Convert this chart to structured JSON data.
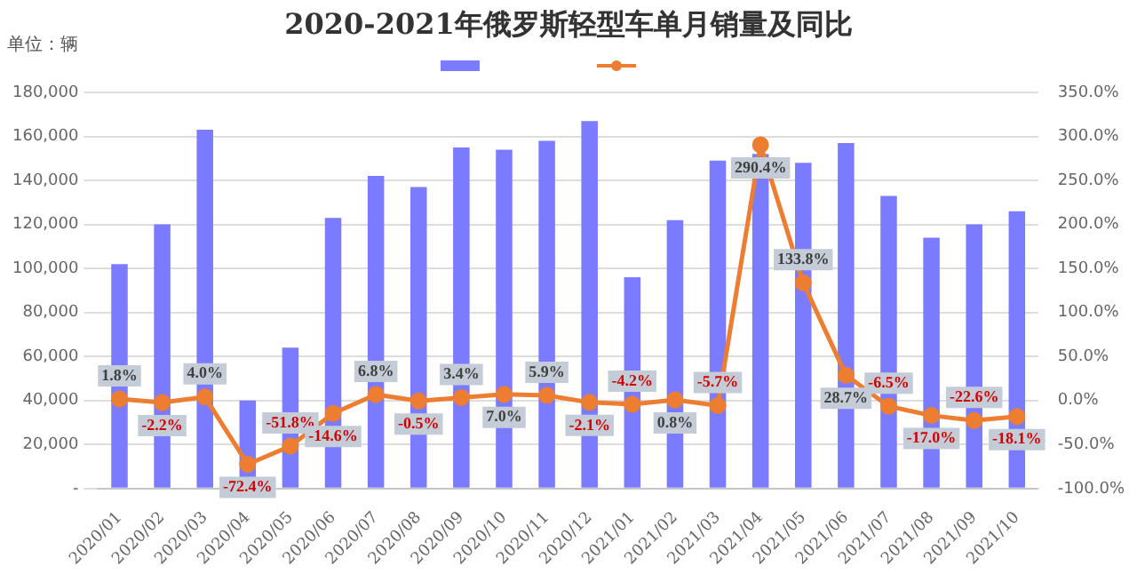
{
  "chart_data": {
    "type": "bar",
    "title": "2020-2021年俄罗斯轻型车单月销量及同比",
    "annotations": [
      "单位：辆"
    ],
    "categories": [
      "2020/01",
      "2020/02",
      "2020/03",
      "2020/04",
      "2020/05",
      "2020/06",
      "2020/07",
      "2020/08",
      "2020/09",
      "2020/10",
      "2020/11",
      "2020/12",
      "2021/01",
      "2021/02",
      "2021/03",
      "2021/04",
      "2021/05",
      "2021/06",
      "2021/07",
      "2021/08",
      "2021/09",
      "2021/10"
    ],
    "series": [
      {
        "color": "#7b7bff",
        "values": [
          102000,
          120000,
          163000,
          40000,
          64000,
          123000,
          142000,
          137000,
          155000,
          154000,
          158000,
          167000,
          96000,
          122000,
          149000,
          152000,
          148000,
          157000,
          133000,
          114000,
          120000,
          126000
        ]
      },
      {
        "type": "line",
        "axis": "y2",
        "color": "#ed7d31",
        "marker": "circle",
        "values": [
          1.8,
          -2.2,
          4.0,
          -72.4,
          -51.8,
          -14.6,
          6.8,
          -0.5,
          3.4,
          7.0,
          5.9,
          -2.1,
          -4.2,
          0.8,
          -5.7,
          290.4,
          133.8,
          28.7,
          -6.5,
          -17.0,
          -22.6,
          -18.1
        ],
        "value_labels": [
          "1.8%",
          "-2.2%",
          "4.0%",
          "-72.4%",
          "-51.8%",
          "-14.6%",
          "6.8%",
          "-0.5%",
          "3.4%",
          "7.0%",
          "5.9%",
          "-2.1%",
          "-4.2%",
          "0.8%",
          "-5.7%",
          "290.4%",
          "133.8%",
          "28.7%",
          "-6.5%",
          "-17.0%",
          "-22.6%",
          "-18.1%"
        ]
      }
    ],
    "ylim": [
      0,
      180000
    ],
    "yticks": [
      {
        "value": 0,
        "label": "-"
      },
      {
        "value": 20000,
        "label": "20,000"
      },
      {
        "value": 40000,
        "label": "40,000"
      },
      {
        "value": 60000,
        "label": "60,000"
      },
      {
        "value": 80000,
        "label": "80,000"
      },
      {
        "value": 100000,
        "label": "100,000"
      },
      {
        "value": 120000,
        "label": "120,000"
      },
      {
        "value": 140000,
        "label": "140,000"
      },
      {
        "value": 160000,
        "label": "160,000"
      },
      {
        "value": 180000,
        "label": "180,000"
      }
    ],
    "y2lim": [
      -100,
      350
    ],
    "y2ticks": [
      {
        "value": -100,
        "label": "-100.0%"
      },
      {
        "value": -50,
        "label": "-50.0%"
      },
      {
        "value": 0,
        "label": "0.0%"
      },
      {
        "value": 50,
        "label": "50.0%"
      },
      {
        "value": 100,
        "label": "100.0%"
      },
      {
        "value": 150,
        "label": "150.0%"
      },
      {
        "value": 200,
        "label": "200.0%"
      },
      {
        "value": 250,
        "label": "250.0%"
      },
      {
        "value": 300,
        "label": "300.0%"
      },
      {
        "value": 350,
        "label": "350.0%"
      }
    ],
    "grid": "y"
  }
}
